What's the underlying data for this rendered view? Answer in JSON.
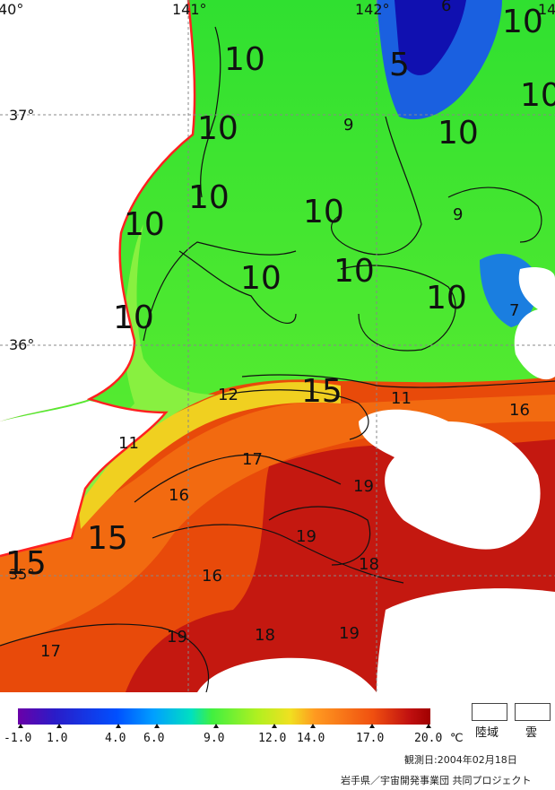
{
  "map": {
    "lon_labels": [
      "40°",
      "141°",
      "142°",
      "14"
    ],
    "lat_labels": [
      "37°",
      "36°",
      "35°"
    ],
    "contour_labels": {
      "ten": "10",
      "nine": "9",
      "five": "5",
      "six": "6",
      "seven": "7",
      "eleven": "11",
      "twelve": "12",
      "fifteen": "15",
      "sixteen": "16",
      "seventeen": "17",
      "eighteen": "18",
      "nineteen": "19"
    }
  },
  "legend": {
    "colorbar_stops": [
      "#6a00a8",
      "#2a1cc8",
      "#0050ff",
      "#00a0ff",
      "#00e0c0",
      "#40f040",
      "#b0f020",
      "#f0e020",
      "#ff9a20",
      "#f05010",
      "#c01010",
      "#a00000"
    ],
    "ticks": [
      "-1.0",
      "1.0",
      "4.0",
      "6.0",
      "9.0",
      "12.0",
      "14.0",
      "17.0",
      "20.0"
    ],
    "unit": "℃",
    "land_label": "陸域",
    "cloud_label": "雲",
    "observed": "観測日:2004年02月18日",
    "credit": "岩手県／宇宙開発事業団 共同プロジェクト"
  }
}
